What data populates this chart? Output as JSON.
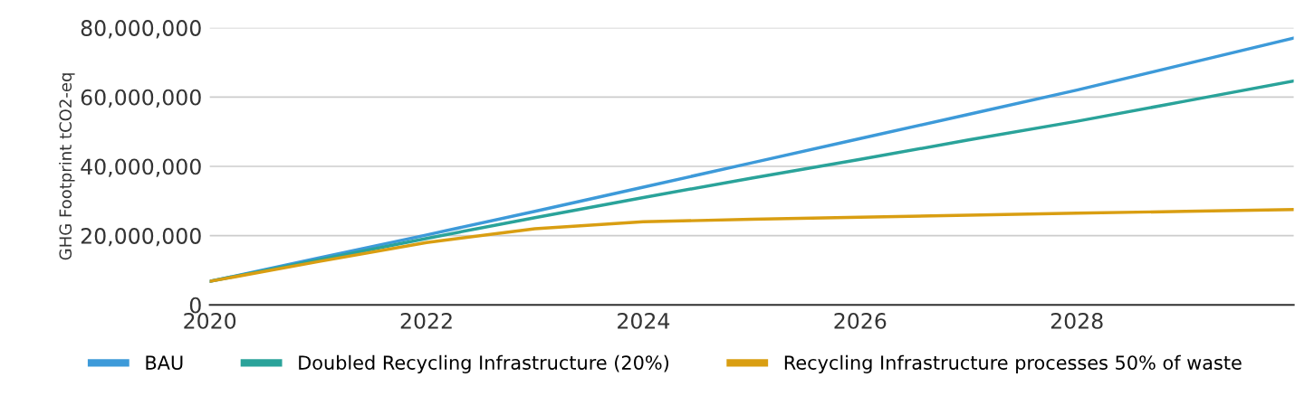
{
  "chart_data": {
    "type": "line",
    "ylabel": "GHG Footprint tCO2-eq",
    "x": [
      2020,
      2021,
      2022,
      2023,
      2024,
      2025,
      2026,
      2027,
      2028,
      2029,
      2030
    ],
    "series": [
      {
        "name": "BAU",
        "color": "#3d9ad9",
        "values": [
          6800000,
          13500000,
          20200000,
          27000000,
          34000000,
          41000000,
          48000000,
          55000000,
          62000000,
          69500000,
          77000000
        ]
      },
      {
        "name": "Doubled Recycling Infrastructure (20%)",
        "color": "#2aa39a",
        "values": [
          6800000,
          13000000,
          19200000,
          25200000,
          31000000,
          36600000,
          42000000,
          47600000,
          53000000,
          58800000,
          64600000
        ]
      },
      {
        "name": "Recycling Infrastructure processes 50% of waste",
        "color": "#d99e12",
        "values": [
          6800000,
          12500000,
          18000000,
          22000000,
          24000000,
          24700000,
          25300000,
          25900000,
          26500000,
          27000000,
          27500000
        ]
      }
    ],
    "xlim": [
      2020,
      2030
    ],
    "xticks": [
      2020,
      2022,
      2024,
      2026,
      2028
    ],
    "ylim": [
      0,
      80000000
    ],
    "yticks": [
      {
        "value": 0,
        "label": "0"
      },
      {
        "value": 20000000,
        "label": "20,000,000"
      },
      {
        "value": 40000000,
        "label": "40,000,000"
      },
      {
        "value": 60000000,
        "label": "60,000,000"
      },
      {
        "value": 80000000,
        "label": "80,000,000"
      }
    ],
    "grid": "y",
    "legend": "bottom",
    "marker": "none",
    "line_style": "solid"
  }
}
